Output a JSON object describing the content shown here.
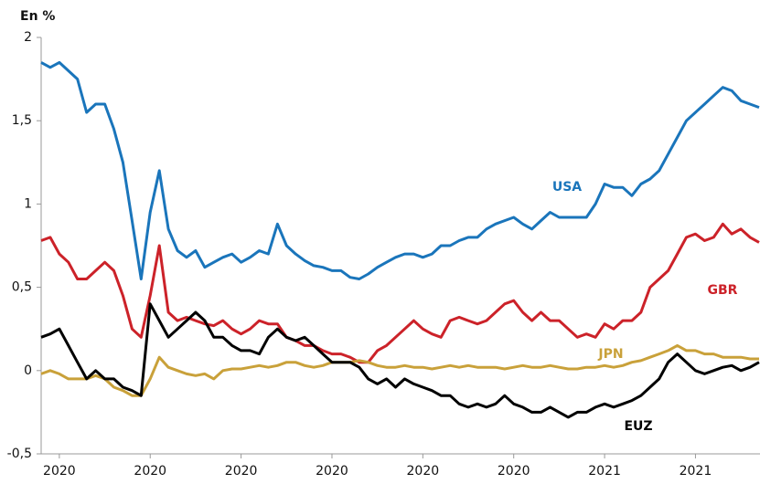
{
  "chart_data": {
    "type": "line",
    "ylabel": "En %",
    "categories": [
      null,
      null,
      "2020",
      null,
      null,
      null,
      null,
      null,
      null,
      null,
      null,
      null,
      "2020",
      null,
      null,
      null,
      null,
      null,
      null,
      null,
      null,
      null,
      "2020",
      null,
      null,
      null,
      null,
      null,
      null,
      null,
      null,
      null,
      "2020",
      null,
      null,
      null,
      null,
      null,
      null,
      null,
      null,
      null,
      "2020",
      null,
      null,
      null,
      null,
      null,
      null,
      null,
      null,
      null,
      "2020",
      null,
      null,
      null,
      null,
      null,
      null,
      null,
      null,
      null,
      "2021",
      null,
      null,
      null,
      null,
      null,
      null,
      null,
      null,
      null,
      "2021",
      null,
      null,
      null,
      null,
      null,
      null,
      null
    ],
    "series": [
      {
        "name": "USA",
        "color": "#1a75bb",
        "values": [
          1.85,
          1.82,
          1.85,
          1.8,
          1.75,
          1.55,
          1.6,
          1.6,
          1.45,
          1.25,
          0.9,
          0.55,
          0.95,
          1.2,
          0.85,
          0.72,
          0.68,
          0.72,
          0.62,
          0.65,
          0.68,
          0.7,
          0.65,
          0.68,
          0.72,
          0.7,
          0.88,
          0.75,
          0.7,
          0.66,
          0.63,
          0.62,
          0.6,
          0.6,
          0.56,
          0.55,
          0.58,
          0.62,
          0.65,
          0.68,
          0.7,
          0.7,
          0.68,
          0.7,
          0.75,
          0.75,
          0.78,
          0.8,
          0.8,
          0.85,
          0.88,
          0.9,
          0.92,
          0.88,
          0.85,
          0.9,
          0.95,
          0.92,
          0.92,
          0.92,
          0.92,
          1.0,
          1.12,
          1.1,
          1.1,
          1.05,
          1.12,
          1.15,
          1.2,
          1.3,
          1.4,
          1.5,
          1.55,
          1.6,
          1.65,
          1.7,
          1.68,
          1.62,
          1.6,
          1.58
        ]
      },
      {
        "name": "GBR",
        "color": "#cc2229",
        "values": [
          0.78,
          0.8,
          0.7,
          0.65,
          0.55,
          0.55,
          0.6,
          0.65,
          0.6,
          0.45,
          0.25,
          0.2,
          0.45,
          0.75,
          0.35,
          0.3,
          0.32,
          0.3,
          0.28,
          0.27,
          0.3,
          0.25,
          0.22,
          0.25,
          0.3,
          0.28,
          0.28,
          0.2,
          0.18,
          0.15,
          0.15,
          0.12,
          0.1,
          0.1,
          0.08,
          0.05,
          0.05,
          0.12,
          0.15,
          0.2,
          0.25,
          0.3,
          0.25,
          0.22,
          0.2,
          0.3,
          0.32,
          0.3,
          0.28,
          0.3,
          0.35,
          0.4,
          0.42,
          0.35,
          0.3,
          0.35,
          0.3,
          0.3,
          0.25,
          0.2,
          0.22,
          0.2,
          0.28,
          0.25,
          0.3,
          0.3,
          0.35,
          0.5,
          0.55,
          0.6,
          0.7,
          0.8,
          0.82,
          0.78,
          0.8,
          0.88,
          0.82,
          0.85,
          0.8,
          0.77
        ]
      },
      {
        "name": "JPN",
        "color": "#c9a13a",
        "values": [
          -0.02,
          0,
          -0.02,
          -0.05,
          -0.05,
          -0.05,
          -0.03,
          -0.05,
          -0.1,
          -0.12,
          -0.15,
          -0.15,
          -0.05,
          0.08,
          0.02,
          0,
          -0.02,
          -0.03,
          -0.02,
          -0.05,
          0,
          0.01,
          0.01,
          0.02,
          0.03,
          0.02,
          0.03,
          0.05,
          0.05,
          0.03,
          0.02,
          0.03,
          0.05,
          0.05,
          0.05,
          0.06,
          0.05,
          0.03,
          0.02,
          0.02,
          0.03,
          0.02,
          0.02,
          0.01,
          0.02,
          0.03,
          0.02,
          0.03,
          0.02,
          0.02,
          0.02,
          0.01,
          0.02,
          0.03,
          0.02,
          0.02,
          0.03,
          0.02,
          0.01,
          0.01,
          0.02,
          0.02,
          0.03,
          0.02,
          0.03,
          0.05,
          0.06,
          0.08,
          0.1,
          0.12,
          0.15,
          0.12,
          0.12,
          0.1,
          0.1,
          0.08,
          0.08,
          0.08,
          0.07,
          0.07
        ]
      },
      {
        "name": "EUZ",
        "color": "#000000",
        "values": [
          0.2,
          0.22,
          0.25,
          0.15,
          0.05,
          -0.05,
          0,
          -0.05,
          -0.05,
          -0.1,
          -0.12,
          -0.15,
          0.4,
          0.3,
          0.2,
          0.25,
          0.3,
          0.35,
          0.3,
          0.2,
          0.2,
          0.15,
          0.12,
          0.12,
          0.1,
          0.2,
          0.25,
          0.2,
          0.18,
          0.2,
          0.15,
          0.1,
          0.05,
          0.05,
          0.05,
          0.02,
          -0.05,
          -0.08,
          -0.05,
          -0.1,
          -0.05,
          -0.08,
          -0.1,
          -0.12,
          -0.15,
          -0.15,
          -0.2,
          -0.22,
          -0.2,
          -0.22,
          -0.2,
          -0.15,
          -0.2,
          -0.22,
          -0.25,
          -0.25,
          -0.22,
          -0.25,
          -0.28,
          -0.25,
          -0.25,
          -0.22,
          -0.2,
          -0.22,
          -0.2,
          -0.18,
          -0.15,
          -0.1,
          -0.05,
          0.05,
          0.1,
          0.05,
          0,
          -0.02,
          0,
          0.02,
          0.03,
          0,
          0.02,
          0.05
        ]
      }
    ],
    "ylim": [
      -0.5,
      2
    ],
    "yticks": [
      {
        "value": -0.5,
        "label": "-0,5"
      },
      0,
      {
        "value": 0.5,
        "label": "0,5"
      },
      1,
      {
        "value": 1.5,
        "label": "1,5"
      },
      2
    ],
    "grid": false
  }
}
